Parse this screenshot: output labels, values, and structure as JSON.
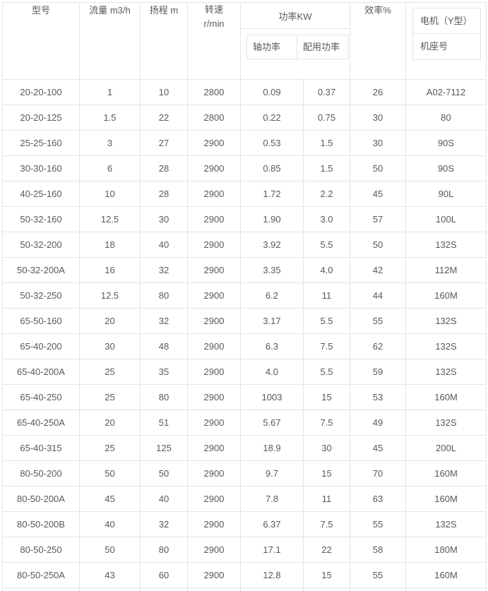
{
  "table": {
    "headers": {
      "model": "型号",
      "flow": "流量 m3/h",
      "head": "扬程 m",
      "speed_line1": "转速",
      "speed_line2": "r/min",
      "power_group": "功率KW",
      "shaft_power": "轴功率",
      "rated_power": "配用功率",
      "efficiency": "效率%",
      "motor_line1": "电机（Y型）",
      "motor_line2": "机座号"
    },
    "rows": [
      [
        "20-20-100",
        "1",
        "10",
        "2800",
        "0.09",
        "0.37",
        "26",
        "A02-7112"
      ],
      [
        "20-20-125",
        "1.5",
        "22",
        "2800",
        "0.22",
        "0.75",
        "30",
        "80"
      ],
      [
        "25-25-160",
        "3",
        "27",
        "2900",
        "0.53",
        "1.5",
        "30",
        "90S"
      ],
      [
        "30-30-160",
        "6",
        "28",
        "2900",
        "0.85",
        "1.5",
        "50",
        "90S"
      ],
      [
        "40-25-160",
        "10",
        "28",
        "2900",
        "1.72",
        "2.2",
        "45",
        "90L"
      ],
      [
        "50-32-160",
        "12.5",
        "30",
        "2900",
        "1.90",
        "3.0",
        "57",
        "100L"
      ],
      [
        "50-32-200",
        "18",
        "40",
        "2900",
        "3.92",
        "5.5",
        "50",
        "132S"
      ],
      [
        "50-32-200A",
        "16",
        "32",
        "2900",
        "3.35",
        "4.0",
        "42",
        "112M"
      ],
      [
        "50-32-250",
        "12.5",
        "80",
        "2900",
        "6.2",
        "11",
        "44",
        "160M"
      ],
      [
        "65-50-160",
        "20",
        "32",
        "2900",
        "3.17",
        "5.5",
        "55",
        "132S"
      ],
      [
        "65-40-200",
        "30",
        "48",
        "2900",
        "6.3",
        "7.5",
        "62",
        "132S"
      ],
      [
        "65-40-200A",
        "25",
        "35",
        "2900",
        "4.0",
        "5.5",
        "59",
        "132S"
      ],
      [
        "65-40-250",
        "25",
        "80",
        "2900",
        "1003",
        "15",
        "53",
        "160M"
      ],
      [
        "65-40-250A",
        "20",
        "51",
        "2900",
        "5.67",
        "7.5",
        "49",
        "132S"
      ],
      [
        "65-40-315",
        "25",
        "125",
        "2900",
        "18.9",
        "30",
        "45",
        "200L"
      ],
      [
        "80-50-200",
        "50",
        "50",
        "2900",
        "9.7",
        "15",
        "70",
        "160M"
      ],
      [
        "80-50-200A",
        "45",
        "40",
        "2900",
        "7.8",
        "11",
        "63",
        "160M"
      ],
      [
        "80-50-200B",
        "40",
        "32",
        "2900",
        "6.37",
        "7.5",
        "55",
        "132S"
      ],
      [
        "80-50-250",
        "50",
        "80",
        "2900",
        "17.1",
        "22",
        "58",
        "180M"
      ],
      [
        "80-50-250A",
        "43",
        "60",
        "2900",
        "12.8",
        "15",
        "55",
        "160M"
      ]
    ],
    "colors": {
      "border": "#e4e4e4",
      "text": "#595959",
      "background": "#ffffff"
    }
  }
}
